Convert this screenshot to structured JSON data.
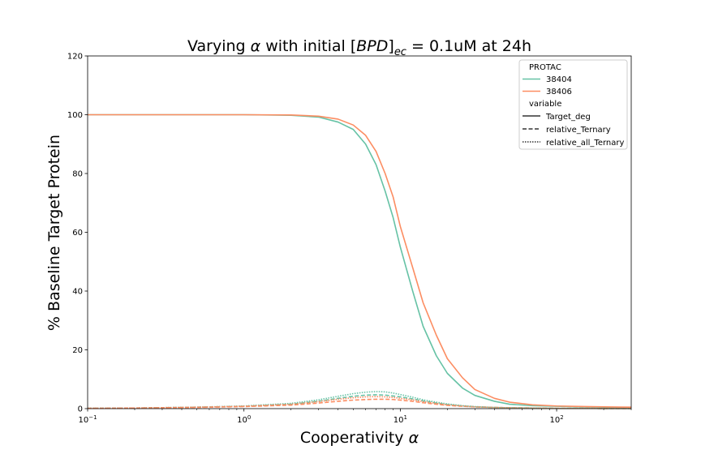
{
  "chart_data": {
    "type": "line",
    "title_parts": {
      "prefix": "Varying ",
      "alpha": "α",
      "middle": " with initial [",
      "bpd": "BPD",
      "close": "]",
      "sub": "ec",
      "suffix": " = 0.1uM at 24h"
    },
    "xlabel_parts": {
      "text": "Cooperativity ",
      "alpha": "α"
    },
    "ylabel": "% Baseline Target Protein",
    "xscale": "log",
    "xlim": [
      0.1,
      300
    ],
    "ylim": [
      0,
      120
    ],
    "xticks": [
      {
        "value": 0.1,
        "base": "10",
        "exp": "−1"
      },
      {
        "value": 1,
        "base": "10",
        "exp": "0"
      },
      {
        "value": 10,
        "base": "10",
        "exp": "1"
      },
      {
        "value": 100,
        "base": "10",
        "exp": "2"
      }
    ],
    "yticks": [
      "0",
      "20",
      "40",
      "60",
      "80",
      "100",
      "120"
    ],
    "grid": false,
    "legend": {
      "placement": "top-right",
      "hue_title": "PROTAC",
      "style_title": "variable",
      "hue_entries": [
        {
          "label": "38404",
          "color": "#66c2a5"
        },
        {
          "label": "38406",
          "color": "#fc8d62"
        }
      ],
      "style_entries": [
        {
          "label": "Target_deg",
          "dash": "solid"
        },
        {
          "label": "relative_Ternary",
          "dash": "dashed"
        },
        {
          "label": "relative_all_Ternary",
          "dash": "dotted"
        }
      ]
    },
    "x": [
      0.1,
      0.2,
      0.5,
      1,
      2,
      3,
      4,
      5,
      6,
      7,
      8,
      9,
      10,
      12,
      14,
      17,
      20,
      25,
      30,
      40,
      50,
      70,
      100,
      150,
      200,
      300
    ],
    "series": [
      {
        "protac": "38404",
        "variable": "Target_deg",
        "color": "#66c2a5",
        "dash": "solid",
        "values": [
          100,
          100,
          100,
          100,
          99.8,
          99.2,
          97.5,
          95,
          90,
          83,
          74,
          65,
          55,
          40,
          28,
          18,
          12,
          7,
          4.5,
          2.5,
          1.5,
          1.0,
          0.8,
          0.6,
          0.5,
          0.4
        ]
      },
      {
        "protac": "38406",
        "variable": "Target_deg",
        "color": "#fc8d62",
        "dash": "solid",
        "values": [
          100,
          100,
          100,
          100,
          99.9,
          99.5,
          98.5,
          96.5,
          93,
          87.5,
          80,
          72,
          62,
          48,
          36,
          25,
          17,
          10.5,
          6.5,
          3.5,
          2.2,
          1.3,
          0.9,
          0.7,
          0.6,
          0.5
        ]
      },
      {
        "protac": "38404",
        "variable": "relative_Ternary",
        "color": "#66c2a5",
        "dash": "dashed",
        "values": [
          0.1,
          0.2,
          0.5,
          0.8,
          1.5,
          2.5,
          3.5,
          4.2,
          4.6,
          4.7,
          4.6,
          4.3,
          4.0,
          3.3,
          2.6,
          1.9,
          1.4,
          0.9,
          0.6,
          0.4,
          0.3,
          0.2,
          0.1,
          0.1,
          0.05,
          0.05
        ]
      },
      {
        "protac": "38406",
        "variable": "relative_Ternary",
        "color": "#fc8d62",
        "dash": "dashed",
        "values": [
          0.1,
          0.2,
          0.4,
          0.7,
          1.2,
          1.9,
          2.5,
          2.9,
          3.1,
          3.2,
          3.2,
          3.1,
          2.9,
          2.5,
          2.0,
          1.5,
          1.1,
          0.8,
          0.6,
          0.4,
          0.3,
          0.2,
          0.1,
          0.1,
          0.05,
          0.05
        ]
      },
      {
        "protac": "38404",
        "variable": "relative_all_Ternary",
        "color": "#66c2a5",
        "dash": "dotted",
        "values": [
          0.1,
          0.2,
          0.5,
          0.9,
          1.8,
          3.0,
          4.2,
          5.1,
          5.6,
          5.8,
          5.7,
          5.3,
          4.8,
          3.9,
          3.0,
          2.2,
          1.6,
          1.0,
          0.7,
          0.4,
          0.3,
          0.2,
          0.1,
          0.1,
          0.05,
          0.05
        ]
      },
      {
        "protac": "38406",
        "variable": "relative_all_Ternary",
        "color": "#fc8d62",
        "dash": "dotted",
        "values": [
          0.1,
          0.2,
          0.5,
          0.8,
          1.5,
          2.4,
          3.2,
          3.7,
          4.0,
          4.1,
          4.0,
          3.8,
          3.5,
          3.0,
          2.4,
          1.8,
          1.3,
          0.9,
          0.6,
          0.4,
          0.3,
          0.2,
          0.1,
          0.1,
          0.05,
          0.05
        ]
      }
    ]
  }
}
